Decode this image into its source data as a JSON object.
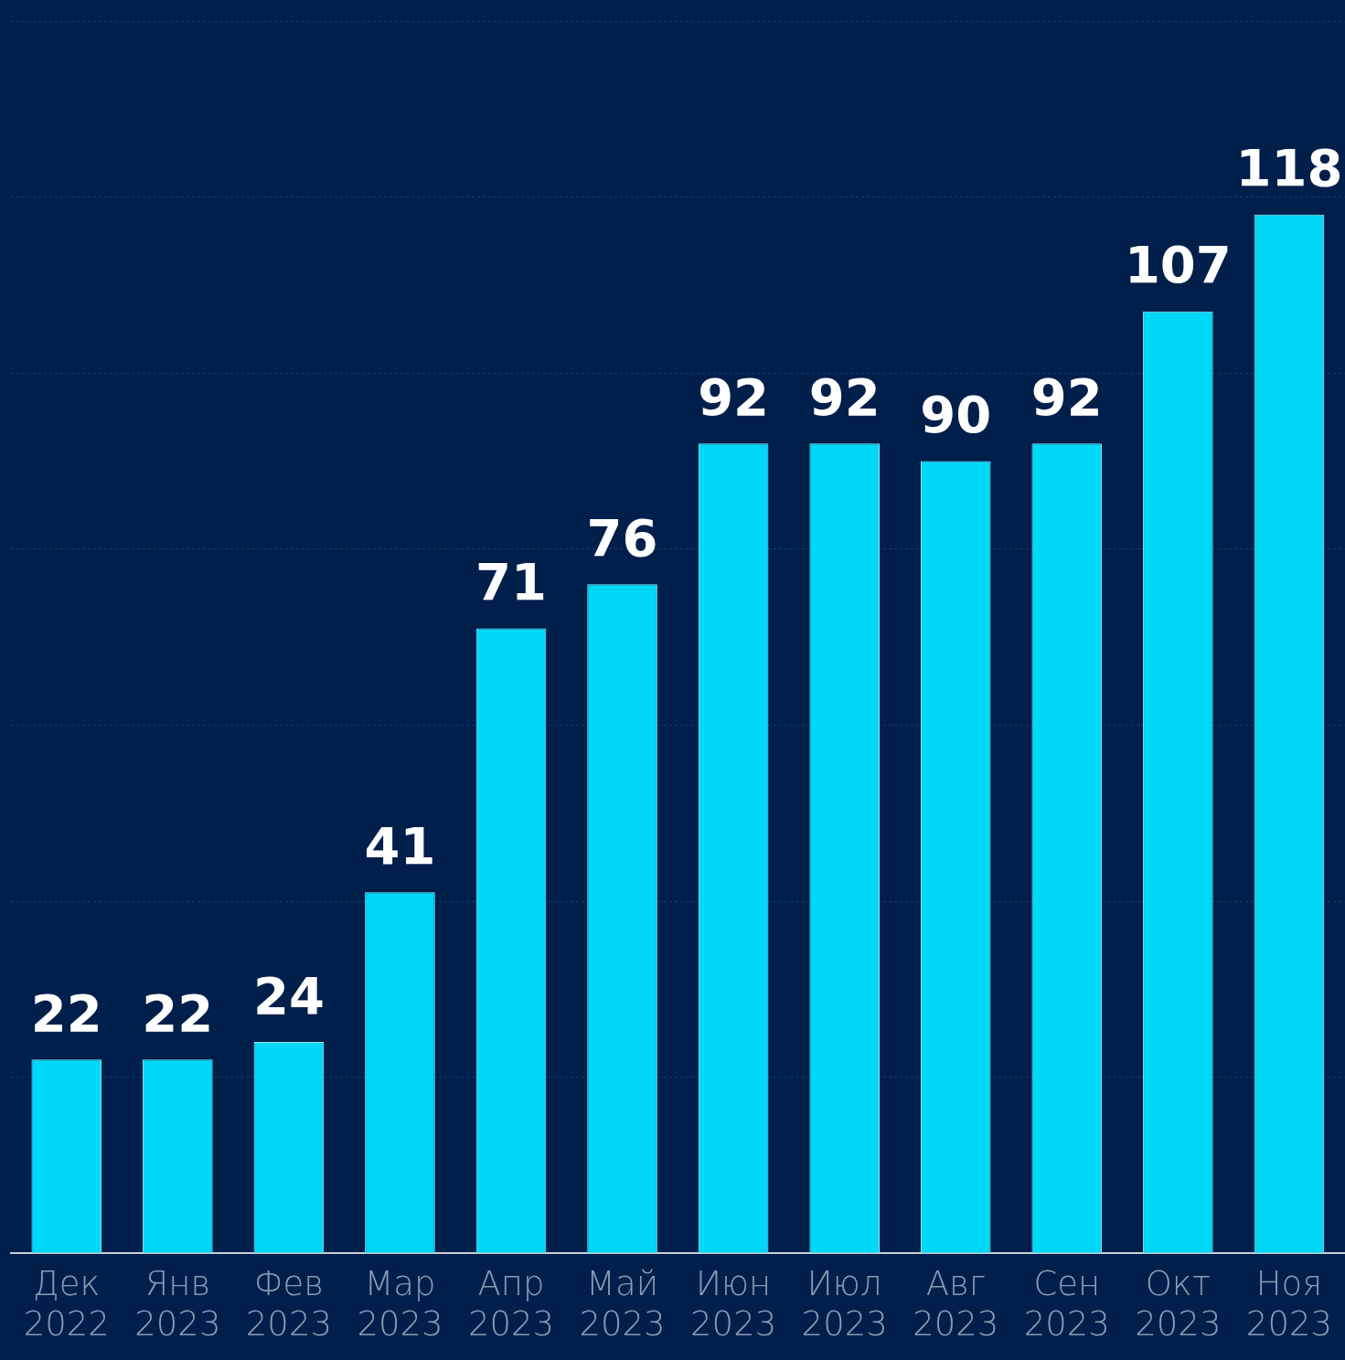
{
  "chart_data": {
    "type": "bar",
    "categories": [
      "Дек 2022",
      "Янв 2023",
      "Фев 2023",
      "Мар 2023",
      "Апр 2023",
      "Май 2023",
      "Июн 2023",
      "Июл 2023",
      "Авг 2023",
      "Сен 2023",
      "Окт 2023",
      "Ноя 2023"
    ],
    "values": [
      22,
      22,
      24,
      41,
      71,
      76,
      92,
      92,
      90,
      92,
      107,
      118
    ],
    "color": "#00d8f8",
    "ylim": [
      0,
      140
    ],
    "yticks": [
      {
        "value": 0,
        "label": null
      },
      {
        "value": 20,
        "label": null
      },
      {
        "value": 40,
        "label": null
      },
      {
        "value": 60,
        "label": null
      },
      {
        "value": 80,
        "label": null
      },
      {
        "value": 100,
        "label": null
      },
      {
        "value": 120,
        "label": null
      },
      {
        "value": 140,
        "label": null
      }
    ],
    "grid": "y",
    "tick_labels": "x",
    "data_labels": true
  }
}
